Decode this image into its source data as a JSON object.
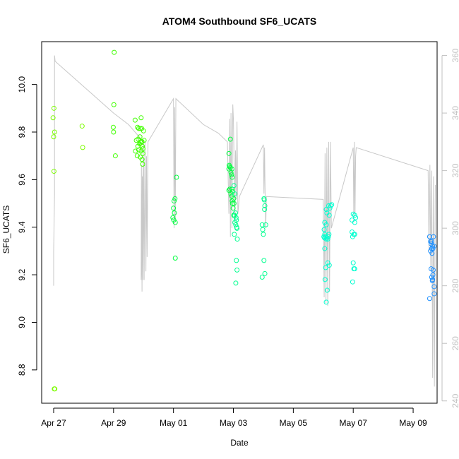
{
  "chart_data": {
    "type": "scatter",
    "title": "ATOM4 Southbound SF6_UCATS",
    "xlabel": "Date",
    "ylabel": "SF6_UCATS",
    "x_range_days": [
      -0.4,
      12.8
    ],
    "x_axis_labels": [
      "Apr 27",
      "Apr 29",
      "May 01",
      "May 03",
      "May 05",
      "May 07",
      "May 09"
    ],
    "x_axis_ticks_days": [
      0,
      2,
      4,
      6,
      8,
      10,
      12
    ],
    "ylim": [
      8.66,
      10.18
    ],
    "y_ticks": [
      8.8,
      9.0,
      9.2,
      9.4,
      9.6,
      9.8,
      10.0
    ],
    "y_tick_labels": [
      "8.8",
      "9.0",
      "9.2",
      "9.4",
      "9.6",
      "9.8",
      "10.0"
    ],
    "y2_lim": [
      239.2,
      364.8
    ],
    "y2_ticks": [
      240,
      260,
      280,
      300,
      320,
      340,
      360
    ],
    "y2_tick_labels": [
      "240",
      "260",
      "280",
      "300",
      "320",
      "340",
      "360"
    ],
    "grid": false,
    "series": [
      {
        "color": "#7cfc00",
        "points": [
          [
            0.01,
            9.9
          ],
          [
            -0.02,
            9.86
          ],
          [
            0.03,
            9.8
          ],
          [
            0.0,
            9.78
          ],
          [
            0.01,
            9.635
          ],
          [
            0.02,
            8.72
          ],
          [
            0.04,
            8.72
          ],
          [
            0.95,
            9.825
          ],
          [
            0.97,
            9.735
          ]
        ]
      },
      {
        "color": "#40ff00",
        "points": [
          [
            2.02,
            10.135
          ],
          [
            2.01,
            9.915
          ],
          [
            1.99,
            9.82
          ],
          [
            2.0,
            9.8
          ],
          [
            2.06,
            9.7
          ],
          [
            2.72,
            9.85
          ],
          [
            2.8,
            9.82
          ],
          [
            2.84,
            9.815
          ],
          [
            2.89,
            9.815
          ],
          [
            2.92,
            9.86
          ],
          [
            3.0,
            9.805
          ],
          [
            2.94,
            9.815
          ],
          [
            2.76,
            9.765
          ],
          [
            2.82,
            9.77
          ],
          [
            2.88,
            9.78
          ],
          [
            2.92,
            9.76
          ],
          [
            2.95,
            9.76
          ],
          [
            3.02,
            9.765
          ],
          [
            2.81,
            9.74
          ],
          [
            2.87,
            9.75
          ],
          [
            2.91,
            9.755
          ],
          [
            2.96,
            9.74
          ],
          [
            2.73,
            9.72
          ],
          [
            2.84,
            9.725
          ],
          [
            2.92,
            9.72
          ],
          [
            2.98,
            9.73
          ],
          [
            2.98,
            9.71
          ],
          [
            2.79,
            9.7
          ],
          [
            2.89,
            9.695
          ],
          [
            2.95,
            9.685
          ],
          [
            2.97,
            9.665
          ]
        ]
      },
      {
        "color": "#00ff40",
        "points": [
          [
            4.1,
            9.61
          ],
          [
            4.05,
            9.52
          ],
          [
            4.02,
            9.51
          ],
          [
            4.0,
            9.48
          ],
          [
            4.03,
            9.46
          ],
          [
            3.98,
            9.44
          ],
          [
            4.01,
            9.43
          ],
          [
            4.06,
            9.42
          ],
          [
            4.06,
            9.27
          ],
          [
            5.9,
            9.77
          ],
          [
            5.85,
            9.71
          ],
          [
            5.86,
            9.66
          ],
          [
            5.88,
            9.655
          ],
          [
            5.9,
            9.65
          ],
          [
            5.85,
            9.645
          ],
          [
            5.95,
            9.645
          ],
          [
            5.92,
            9.63
          ],
          [
            5.94,
            9.62
          ],
          [
            5.96,
            9.61
          ],
          [
            5.88,
            9.56
          ],
          [
            5.95,
            9.56
          ],
          [
            5.85,
            9.555
          ],
          [
            5.97,
            9.55
          ],
          [
            5.92,
            9.54
          ],
          [
            5.95,
            9.53
          ],
          [
            6.01,
            9.52
          ],
          [
            5.96,
            9.51
          ],
          [
            5.97,
            9.5
          ],
          [
            6.02,
            9.5
          ],
          [
            5.99,
            9.48
          ],
          [
            6.01,
            9.45
          ]
        ]
      },
      {
        "color": "#00ff90",
        "points": [
          [
            6.02,
            9.575
          ],
          [
            6.05,
            9.54
          ],
          [
            6.07,
            9.46
          ],
          [
            6.04,
            9.45
          ],
          [
            6.09,
            9.44
          ],
          [
            6.05,
            9.42
          ],
          [
            6.1,
            9.43
          ],
          [
            6.08,
            9.41
          ],
          [
            6.11,
            9.4
          ],
          [
            6.12,
            9.395
          ],
          [
            6.03,
            9.37
          ],
          [
            6.13,
            9.35
          ],
          [
            6.1,
            9.26
          ],
          [
            6.12,
            9.22
          ],
          [
            6.08,
            9.165
          ],
          [
            7.02,
            9.52
          ],
          [
            7.03,
            9.515
          ],
          [
            7.05,
            9.49
          ],
          [
            7.04,
            9.475
          ],
          [
            6.96,
            9.41
          ],
          [
            7.08,
            9.41
          ],
          [
            6.98,
            9.39
          ],
          [
            7.0,
            9.37
          ],
          [
            7.02,
            9.26
          ],
          [
            7.05,
            9.205
          ],
          [
            6.96,
            9.19
          ]
        ]
      },
      {
        "color": "#00ffd0",
        "points": [
          [
            9.1,
            9.475
          ],
          [
            9.12,
            9.46
          ],
          [
            9.2,
            9.45
          ],
          [
            9.25,
            9.49
          ],
          [
            9.28,
            9.495
          ],
          [
            9.18,
            9.49
          ],
          [
            9.22,
            9.48
          ],
          [
            9.05,
            9.42
          ],
          [
            9.1,
            9.41
          ],
          [
            9.03,
            9.39
          ],
          [
            9.05,
            9.37
          ],
          [
            9.02,
            9.36
          ],
          [
            9.04,
            9.355
          ],
          [
            9.08,
            9.36
          ],
          [
            9.1,
            9.35
          ],
          [
            9.12,
            9.355
          ],
          [
            9.15,
            9.35
          ],
          [
            9.17,
            9.36
          ],
          [
            9.19,
            9.37
          ],
          [
            9.05,
            9.31
          ],
          [
            9.2,
            9.24
          ],
          [
            9.15,
            9.25
          ],
          [
            9.08,
            9.23
          ],
          [
            9.06,
            9.18
          ],
          [
            9.13,
            9.135
          ],
          [
            9.1,
            9.085
          ],
          [
            10.0,
            9.455
          ],
          [
            10.05,
            9.45
          ],
          [
            10.08,
            9.44
          ],
          [
            9.96,
            9.43
          ],
          [
            10.05,
            9.42
          ],
          [
            9.96,
            9.38
          ],
          [
            10.02,
            9.37
          ],
          [
            10.05,
            9.37
          ],
          [
            9.98,
            9.36
          ],
          [
            10.0,
            9.25
          ],
          [
            10.02,
            9.225
          ],
          [
            10.05,
            9.225
          ],
          [
            9.98,
            9.17
          ]
        ]
      },
      {
        "color": "#1e90ff",
        "points": [
          [
            12.55,
            9.36
          ],
          [
            12.68,
            9.36
          ],
          [
            12.58,
            9.34
          ],
          [
            12.62,
            9.34
          ],
          [
            12.6,
            9.33
          ],
          [
            12.65,
            9.32
          ],
          [
            12.7,
            9.32
          ],
          [
            12.62,
            9.31
          ],
          [
            12.66,
            9.31
          ],
          [
            12.58,
            9.3
          ],
          [
            12.63,
            9.29
          ],
          [
            12.6,
            9.225
          ],
          [
            12.67,
            9.22
          ],
          [
            12.66,
            9.2
          ],
          [
            12.62,
            9.19
          ],
          [
            12.65,
            9.18
          ],
          [
            12.64,
            9.175
          ],
          [
            12.7,
            9.15
          ],
          [
            12.7,
            9.12
          ],
          [
            12.55,
            9.1
          ]
        ]
      }
    ],
    "secondary_line": {
      "color": "#c8c8c8",
      "axis": "right",
      "points": [
        [
          0.0,
          289
        ],
        [
          0.0,
          280
        ],
        [
          0.0,
          288
        ],
        [
          0.0,
          292
        ],
        [
          0.03,
          312
        ],
        [
          0.03,
          355
        ],
        [
          0.03,
          360
        ],
        [
          0.05,
          358
        ],
        [
          2.0,
          340
        ],
        [
          2.5,
          336
        ],
        [
          3.0,
          330
        ],
        [
          2.92,
          282
        ],
        [
          2.93,
          322
        ],
        [
          2.95,
          278
        ],
        [
          2.96,
          318
        ],
        [
          2.98,
          282
        ],
        [
          3.0,
          324
        ],
        [
          3.02,
          282
        ],
        [
          3.05,
          330
        ],
        [
          3.08,
          285
        ],
        [
          3.1,
          325
        ],
        [
          3.12,
          290
        ],
        [
          3.15,
          330
        ],
        [
          4.0,
          345
        ],
        [
          4.02,
          300
        ],
        [
          4.04,
          342
        ],
        [
          4.06,
          303
        ],
        [
          4.08,
          345
        ],
        [
          5.0,
          336
        ],
        [
          5.5,
          333
        ],
        [
          5.8,
          330
        ],
        [
          5.85,
          305
        ],
        [
          5.88,
          338
        ],
        [
          5.9,
          297
        ],
        [
          5.92,
          340
        ],
        [
          5.95,
          300
        ],
        [
          5.98,
          343
        ],
        [
          6.0,
          338
        ],
        [
          6.05,
          303
        ],
        [
          6.07,
          327
        ],
        [
          6.1,
          310
        ],
        [
          6.12,
          337
        ],
        [
          6.15,
          305
        ],
        [
          6.2,
          311
        ],
        [
          7.0,
          329
        ],
        [
          7.02,
          312
        ],
        [
          7.04,
          328
        ],
        [
          7.06,
          311
        ],
        [
          7.08,
          300
        ],
        [
          7.1,
          311
        ],
        [
          9.0,
          310
        ],
        [
          9.03,
          276
        ],
        [
          9.06,
          326
        ],
        [
          9.09,
          274
        ],
        [
          9.12,
          328
        ],
        [
          9.15,
          273
        ],
        [
          9.18,
          330
        ],
        [
          9.21,
          278
        ],
        [
          9.24,
          330
        ],
        [
          9.27,
          300
        ],
        [
          10.0,
          328
        ],
        [
          10.02,
          302
        ],
        [
          10.04,
          330
        ],
        [
          10.06,
          305
        ],
        [
          10.08,
          325
        ],
        [
          10.1,
          328
        ],
        [
          12.5,
          320
        ],
        [
          12.53,
          292
        ],
        [
          12.56,
          322
        ],
        [
          12.59,
          285
        ],
        [
          12.62,
          320
        ],
        [
          12.65,
          248
        ],
        [
          12.68,
          318
        ],
        [
          12.71,
          245
        ],
        [
          12.74,
          315
        ]
      ]
    }
  }
}
